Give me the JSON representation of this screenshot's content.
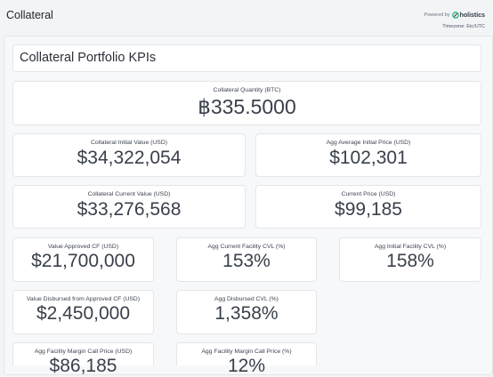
{
  "header": {
    "title": "Collateral",
    "powered_by": "Powered by",
    "brand": "holistics",
    "timezone": "Timezone: Etc/UTC"
  },
  "section_title": "Collateral Portfolio KPIs",
  "kpis": [
    {
      "label": "Collateral Quantity (BTC)",
      "value": "฿335.5000"
    },
    {
      "label": "Collateral Initial Value (USD)",
      "value": "$34,322,054"
    },
    {
      "label": "Agg Average Initial Price (USD)",
      "value": "$102,301"
    },
    {
      "label": "Collateral Current Value (USD)",
      "value": "$33,276,568"
    },
    {
      "label": "Current Price (USD)",
      "value": "$99,185"
    },
    {
      "label": "Value Approved CF (USD)",
      "value": "$21,700,000"
    },
    {
      "label": "Agg Current Facility CVL (%)",
      "value": "153%"
    },
    {
      "label": "Agg Initial Facility CVL (%)",
      "value": "158%"
    },
    {
      "label": "Value Disbursed from Approved CF (USD)",
      "value": "$2,450,000"
    },
    {
      "label": "Agg Disbursed CVL (%)",
      "value": "1,358%"
    },
    {
      "label": "Agg Facility Margin Call Price (USD)",
      "value": "$86,185"
    },
    {
      "label": "Agg Facility Margin Call Price (%)",
      "value": "12%"
    }
  ],
  "colors": {
    "background": "#f3f4f6",
    "card": "#ffffff",
    "border": "#e3e6ea",
    "brand_accent": "#2fb37a"
  }
}
